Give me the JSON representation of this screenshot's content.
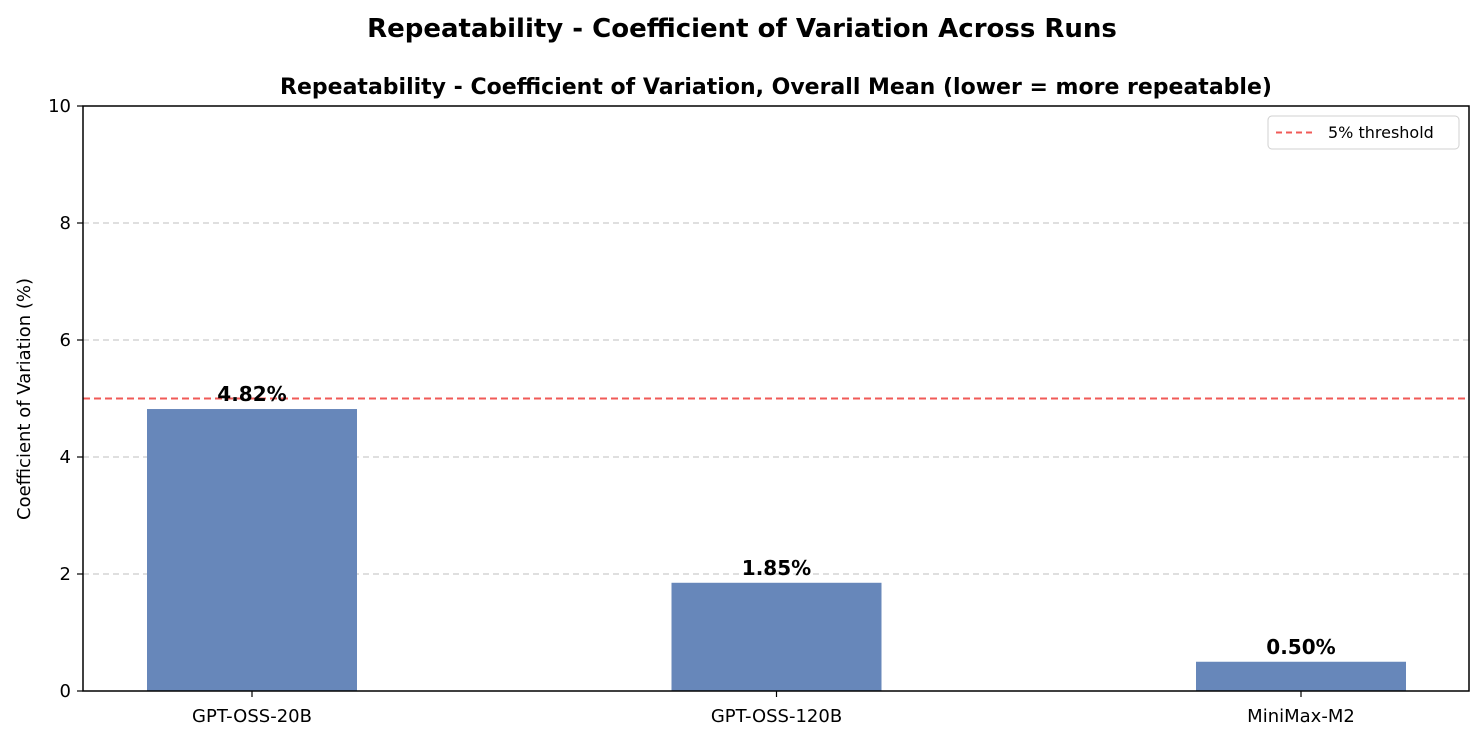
{
  "figure": {
    "suptitle": "Repeatability - Coefficient of Variation Across Runs"
  },
  "chart_data": {
    "type": "bar",
    "title": "Repeatability - Coefficient of Variation, Overall Mean (lower = more repeatable)",
    "xlabel": "",
    "ylabel": "Coefficient of Variation (%)",
    "categories": [
      "GPT-OSS-20B",
      "GPT-OSS-120B",
      "MiniMax-M2"
    ],
    "values": [
      4.82,
      1.85,
      0.5
    ],
    "value_labels": [
      "4.82%",
      "1.85%",
      "0.50%"
    ],
    "ylim": [
      0,
      10
    ],
    "yticks": [
      0,
      2,
      4,
      6,
      8,
      10
    ],
    "ytick_labels": [
      "0",
      "2",
      "4",
      "6",
      "8",
      "10"
    ],
    "grid": "y-dashed",
    "bar_color": "#6787ba",
    "threshold": {
      "value": 5,
      "label": "5% threshold",
      "color": "#f05a57",
      "style": "dashed"
    },
    "legend": {
      "placement": "top-right",
      "entries": [
        "5% threshold"
      ]
    }
  }
}
